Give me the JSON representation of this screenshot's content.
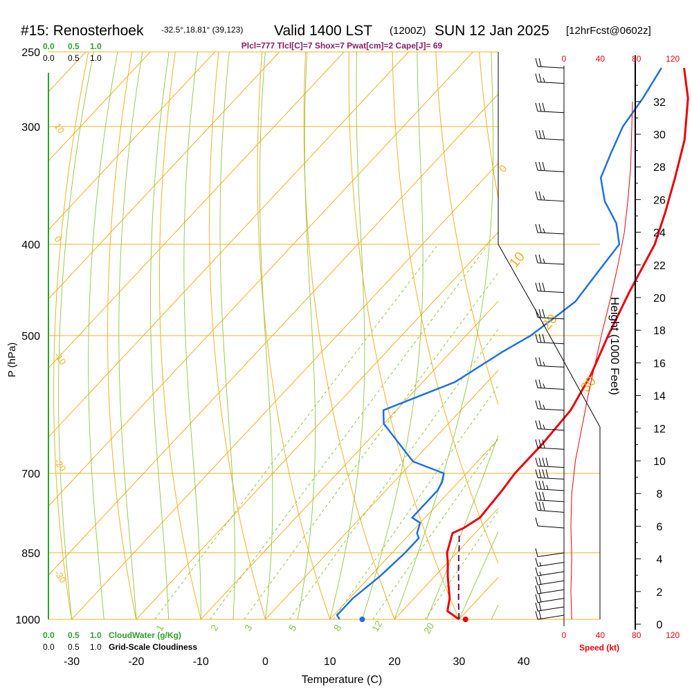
{
  "header": {
    "station": "#15: Renosterhoek",
    "coords": "-32.5°,18.81° (39,123)",
    "valid": "Valid 1400 LST",
    "utc": "(1200Z)",
    "date": "SUN 12 Jan 2025",
    "forecast": "[12hrFcst@0602z]",
    "indices": "Plcl=777 Tlcl[C]=7 Shox=7 Pwat[cm]=2 Cape[J]= 69"
  },
  "colors": {
    "isotherm": "#f0b020",
    "dry_adiabat": "#f0b020",
    "moist_adiabat": "#8cc63f",
    "mixing_ratio": "#8cc63f",
    "temperature": "#e8000b",
    "dewpoint": "#1f6fe0",
    "parcel": "#6a0a4a",
    "cloud_axis": "#2ca02c",
    "speed": "#e8000b",
    "wind_barb": "#000000"
  },
  "chart_data": {
    "type": "line",
    "title": "#15: Renosterhoek",
    "xlabel": "Temperature (C)",
    "ylabel": "P (hPa)",
    "xlim": [
      -34,
      45
    ],
    "ylim": [
      1000,
      250
    ],
    "x_ticks": [
      "-30",
      "-20",
      "-10",
      "0",
      "10",
      "20",
      "30",
      "40"
    ],
    "pressure_ticks": [
      "250",
      "300",
      "400",
      "500",
      "700",
      "850",
      "1000"
    ],
    "height_axis": {
      "label": "Height (1000 Feet)",
      "ticks": [
        "0",
        "2",
        "4",
        "6",
        "8",
        "10",
        "12",
        "14",
        "16",
        "18",
        "20",
        "22",
        "24",
        "26",
        "28",
        "30",
        "32"
      ]
    },
    "speed_axis": {
      "label": "Speed (kt)",
      "ticks": [
        "0",
        "40",
        "80",
        "120"
      ]
    },
    "cloud_water_axis": {
      "label": "CloudWater (g/Kg)",
      "ticks": [
        "0.0",
        "0.5",
        "1.0"
      ]
    },
    "cloudiness_axis": {
      "label": "Grid-Scale Cloudiness",
      "ticks": [
        "0.0",
        "0.5",
        "1.0"
      ]
    },
    "dry_adiabat_labels": [
      "10",
      "0",
      "-10",
      "-20",
      "-30"
    ],
    "upper_labels": [
      "0",
      "10",
      "20",
      "30"
    ],
    "mixing_ratio_labels": [
      "1",
      "2",
      "3",
      "5",
      "8",
      "12",
      "20"
    ],
    "series": [
      {
        "name": "Temperature",
        "points": [
          [
            30,
            1000
          ],
          [
            27,
            980
          ],
          [
            25.5,
            950
          ],
          [
            22,
            900
          ],
          [
            20,
            870
          ],
          [
            18.5,
            850
          ],
          [
            16.5,
            810
          ],
          [
            17.5,
            800
          ],
          [
            18.5,
            780
          ],
          [
            18,
            730
          ],
          [
            17.5,
            700
          ],
          [
            17.5,
            650
          ],
          [
            17,
            600
          ],
          [
            15,
            550
          ],
          [
            12,
            500
          ],
          [
            9,
            450
          ],
          [
            6,
            400
          ],
          [
            3,
            370
          ],
          [
            -0.5,
            340
          ],
          [
            -4.5,
            310
          ],
          [
            -10,
            280
          ],
          [
            -15,
            260
          ]
        ]
      },
      {
        "name": "Dewpoint",
        "points": [
          [
            11.5,
            1000
          ],
          [
            10.5,
            990
          ],
          [
            10.5,
            950
          ],
          [
            11.5,
            900
          ],
          [
            12,
            850
          ],
          [
            12,
            820
          ],
          [
            11,
            810
          ],
          [
            10,
            790
          ],
          [
            8,
            780
          ],
          [
            8,
            750
          ],
          [
            8,
            730
          ],
          [
            7.5,
            715
          ],
          [
            6.5,
            700
          ],
          [
            0,
            680
          ],
          [
            -10,
            620
          ],
          [
            -12,
            600
          ],
          [
            -5,
            560
          ],
          [
            -2,
            520
          ],
          [
            0,
            500
          ],
          [
            1,
            480
          ],
          [
            2,
            460
          ],
          [
            1.5,
            440
          ],
          [
            1,
            420
          ],
          [
            0.5,
            400
          ],
          [
            -3,
            380
          ],
          [
            -8,
            360
          ],
          [
            -12,
            340
          ],
          [
            -14,
            320
          ],
          [
            -16,
            300
          ],
          [
            -17,
            280
          ],
          [
            -18.5,
            260
          ]
        ]
      },
      {
        "name": "Parcel",
        "points": [
          [
            30,
            1000
          ],
          [
            27.5,
            960
          ],
          [
            25,
            920
          ],
          [
            23,
            890
          ],
          [
            21,
            860
          ],
          [
            19,
            830
          ],
          [
            17.5,
            810
          ]
        ]
      }
    ],
    "surface_points": {
      "temperature": 31,
      "dewpoint": 15
    },
    "height_profile": [
      [
        4,
        0.3
      ],
      [
        3,
        2
      ],
      [
        4,
        4
      ],
      [
        3,
        6
      ],
      [
        4,
        8
      ],
      [
        8,
        10
      ],
      [
        15,
        12
      ],
      [
        22,
        14
      ],
      [
        30,
        16
      ],
      [
        38,
        18
      ],
      [
        47,
        20
      ],
      [
        55,
        22
      ],
      [
        62,
        24
      ],
      [
        66,
        26
      ],
      [
        69,
        28
      ],
      [
        70,
        30
      ],
      [
        71,
        32
      ]
    ],
    "winds": [
      {
        "p": 990,
        "dir": 180,
        "kt": 20
      },
      {
        "p": 970,
        "dir": 180,
        "kt": 20
      },
      {
        "p": 950,
        "dir": 185,
        "kt": 20
      },
      {
        "p": 930,
        "dir": 185,
        "kt": 20
      },
      {
        "p": 910,
        "dir": 190,
        "kt": 20
      },
      {
        "p": 890,
        "dir": 190,
        "kt": 15
      },
      {
        "p": 870,
        "dir": 195,
        "kt": 15
      },
      {
        "p": 850,
        "dir": 200,
        "kt": 10
      },
      {
        "p": 800,
        "dir": 300,
        "kt": 10
      },
      {
        "p": 770,
        "dir": 300,
        "kt": 30
      },
      {
        "p": 750,
        "dir": 290,
        "kt": 30
      },
      {
        "p": 730,
        "dir": 290,
        "kt": 35
      },
      {
        "p": 710,
        "dir": 290,
        "kt": 40
      },
      {
        "p": 690,
        "dir": 290,
        "kt": 40
      },
      {
        "p": 660,
        "dir": 290,
        "kt": 30
      },
      {
        "p": 630,
        "dir": 290,
        "kt": 25
      },
      {
        "p": 600,
        "dir": 290,
        "kt": 25
      },
      {
        "p": 570,
        "dir": 290,
        "kt": 25
      },
      {
        "p": 540,
        "dir": 290,
        "kt": 25
      },
      {
        "p": 510,
        "dir": 290,
        "kt": 30
      },
      {
        "p": 480,
        "dir": 290,
        "kt": 30
      },
      {
        "p": 450,
        "dir": 290,
        "kt": 30
      },
      {
        "p": 420,
        "dir": 290,
        "kt": 25
      },
      {
        "p": 390,
        "dir": 290,
        "kt": 25
      },
      {
        "p": 360,
        "dir": 290,
        "kt": 25
      },
      {
        "p": 335,
        "dir": 290,
        "kt": 30
      },
      {
        "p": 310,
        "dir": 290,
        "kt": 30
      },
      {
        "p": 290,
        "dir": 290,
        "kt": 30
      },
      {
        "p": 270,
        "dir": 290,
        "kt": 25
      },
      {
        "p": 260,
        "dir": 290,
        "kt": 20
      }
    ]
  }
}
